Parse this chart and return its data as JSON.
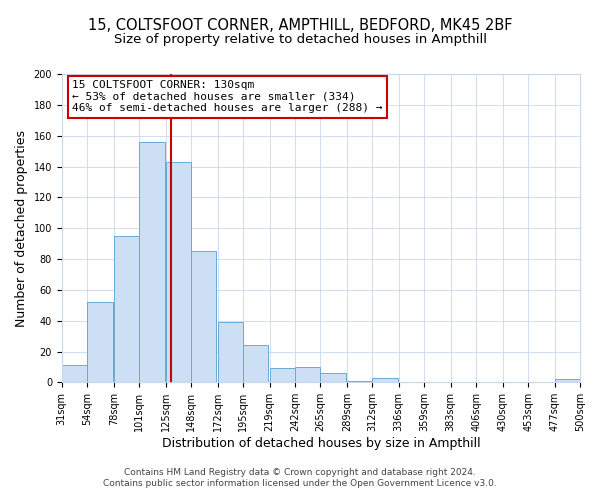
{
  "title": "15, COLTSFOOT CORNER, AMPTHILL, BEDFORD, MK45 2BF",
  "subtitle": "Size of property relative to detached houses in Ampthill",
  "xlabel": "Distribution of detached houses by size in Ampthill",
  "ylabel": "Number of detached properties",
  "bar_left_edges": [
    31,
    54,
    78,
    101,
    125,
    148,
    172,
    195,
    219,
    242,
    265,
    289,
    312,
    336,
    359,
    383,
    406,
    430,
    453,
    477
  ],
  "bar_heights": [
    11,
    52,
    95,
    156,
    143,
    85,
    39,
    24,
    9,
    10,
    6,
    1,
    3,
    0,
    0,
    0,
    0,
    0,
    0,
    2
  ],
  "bin_width": 23,
  "bar_facecolor": "#ccdff5",
  "bar_edgecolor": "#6aaad4",
  "vline_x": 130,
  "vline_color": "#cc0000",
  "annotation_title": "15 COLTSFOOT CORNER: 130sqm",
  "annotation_line1": "← 53% of detached houses are smaller (334)",
  "annotation_line2": "46% of semi-detached houses are larger (288) →",
  "annotation_box_edgecolor": "#cc0000",
  "annotation_box_facecolor": "#ffffff",
  "xlim": [
    31,
    500
  ],
  "ylim": [
    0,
    200
  ],
  "yticks": [
    0,
    20,
    40,
    60,
    80,
    100,
    120,
    140,
    160,
    180,
    200
  ],
  "xtick_labels": [
    "31sqm",
    "54sqm",
    "78sqm",
    "101sqm",
    "125sqm",
    "148sqm",
    "172sqm",
    "195sqm",
    "219sqm",
    "242sqm",
    "265sqm",
    "289sqm",
    "312sqm",
    "336sqm",
    "359sqm",
    "383sqm",
    "406sqm",
    "430sqm",
    "453sqm",
    "477sqm",
    "500sqm"
  ],
  "xtick_positions": [
    31,
    54,
    78,
    101,
    125,
    148,
    172,
    195,
    219,
    242,
    265,
    289,
    312,
    336,
    359,
    383,
    406,
    430,
    453,
    477,
    500
  ],
  "footer_line1": "Contains HM Land Registry data © Crown copyright and database right 2024.",
  "footer_line2": "Contains public sector information licensed under the Open Government Licence v3.0.",
  "background_color": "#ffffff",
  "grid_color": "#c8d8ec",
  "title_fontsize": 10.5,
  "subtitle_fontsize": 9.5,
  "axis_label_fontsize": 9,
  "tick_fontsize": 7,
  "annotation_fontsize": 8,
  "footer_fontsize": 6.5
}
